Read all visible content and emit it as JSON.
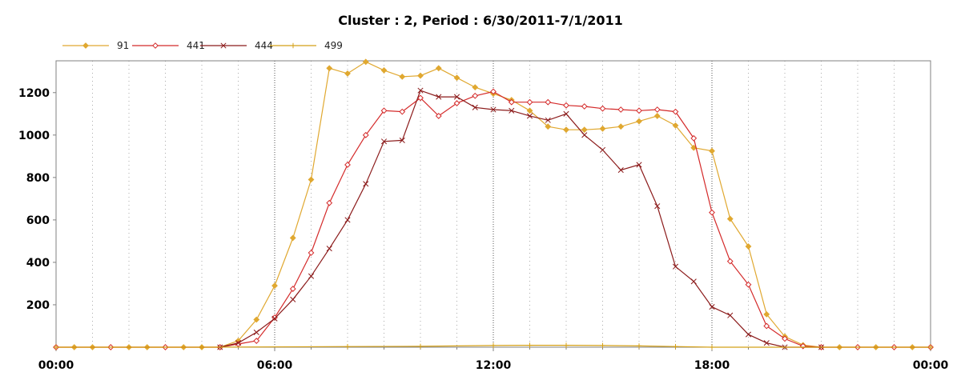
{
  "chart_data": {
    "type": "line",
    "title": "Cluster : 2, Period : 6/30/2011-7/1/2011",
    "xlabel": "",
    "ylabel": "",
    "xlim_hours": [
      0,
      24
    ],
    "ylim": [
      0,
      1350
    ],
    "x_tick_labels": [
      "00:00",
      "06:00",
      "12:00",
      "18:00",
      "00:00"
    ],
    "x_tick_hours": [
      0,
      6,
      12,
      18,
      24
    ],
    "y_ticks": [
      200,
      400,
      600,
      800,
      1000,
      1200
    ],
    "grid": "vertical dotted lines at each hour",
    "legend_placement": "top-left",
    "series": [
      {
        "name": "91",
        "color": "#e0a830",
        "marker": "diamond-filled",
        "points": [
          [
            0,
            0
          ],
          [
            0.5,
            0
          ],
          [
            1,
            0
          ],
          [
            1.5,
            0
          ],
          [
            2,
            0
          ],
          [
            2.5,
            0
          ],
          [
            3,
            0
          ],
          [
            3.5,
            0
          ],
          [
            4,
            0
          ],
          [
            4.5,
            0
          ],
          [
            5,
            30
          ],
          [
            5.5,
            130
          ],
          [
            6,
            290
          ],
          [
            6.5,
            515
          ],
          [
            7,
            790
          ],
          [
            7.5,
            1315
          ],
          [
            8,
            1290
          ],
          [
            8.5,
            1345
          ],
          [
            9,
            1305
          ],
          [
            9.5,
            1275
          ],
          [
            10,
            1280
          ],
          [
            10.5,
            1315
          ],
          [
            11,
            1270
          ],
          [
            11.5,
            1225
          ],
          [
            12,
            1195
          ],
          [
            12.5,
            1165
          ],
          [
            13,
            1115
          ],
          [
            13.5,
            1040
          ],
          [
            14,
            1025
          ],
          [
            14.5,
            1025
          ],
          [
            15,
            1030
          ],
          [
            15.5,
            1040
          ],
          [
            16,
            1065
          ],
          [
            16.5,
            1090
          ],
          [
            17,
            1045
          ],
          [
            17.5,
            940
          ],
          [
            18,
            925
          ],
          [
            18.5,
            605
          ],
          [
            19,
            475
          ],
          [
            19.5,
            155
          ],
          [
            20,
            50
          ],
          [
            20.5,
            10
          ],
          [
            21,
            0
          ],
          [
            21.5,
            0
          ],
          [
            22,
            0
          ],
          [
            22.5,
            0
          ],
          [
            23,
            0
          ],
          [
            23.5,
            0
          ],
          [
            24,
            0
          ]
        ]
      },
      {
        "name": "441",
        "color": "#d42a2a",
        "marker": "diamond-open",
        "points": [
          [
            0,
            0
          ],
          [
            1.5,
            0
          ],
          [
            3,
            0
          ],
          [
            4.5,
            0
          ],
          [
            5,
            15
          ],
          [
            5.5,
            30
          ],
          [
            6,
            140
          ],
          [
            6.5,
            275
          ],
          [
            7,
            445
          ],
          [
            7.5,
            680
          ],
          [
            8,
            860
          ],
          [
            8.5,
            1000
          ],
          [
            9,
            1115
          ],
          [
            9.5,
            1110
          ],
          [
            10,
            1175
          ],
          [
            10.5,
            1090
          ],
          [
            11,
            1150
          ],
          [
            11.5,
            1185
          ],
          [
            12,
            1205
          ],
          [
            12.5,
            1155
          ],
          [
            13,
            1155
          ],
          [
            13.5,
            1155
          ],
          [
            14,
            1140
          ],
          [
            14.5,
            1135
          ],
          [
            15,
            1125
          ],
          [
            15.5,
            1120
          ],
          [
            16,
            1115
          ],
          [
            16.5,
            1120
          ],
          [
            17,
            1110
          ],
          [
            17.5,
            985
          ],
          [
            18,
            635
          ],
          [
            18.5,
            405
          ],
          [
            19,
            295
          ],
          [
            19.5,
            100
          ],
          [
            20,
            40
          ],
          [
            20.5,
            5
          ],
          [
            21,
            0
          ],
          [
            22,
            0
          ],
          [
            23,
            0
          ],
          [
            24,
            0
          ]
        ]
      },
      {
        "name": "444",
        "color": "#8b1a1a",
        "marker": "x",
        "points": [
          [
            4.5,
            0
          ],
          [
            5,
            20
          ],
          [
            5.5,
            70
          ],
          [
            6,
            135
          ],
          [
            6.5,
            225
          ],
          [
            7,
            335
          ],
          [
            7.5,
            465
          ],
          [
            8,
            600
          ],
          [
            8.5,
            770
          ],
          [
            9,
            970
          ],
          [
            9.5,
            975
          ],
          [
            10,
            1210
          ],
          [
            10.5,
            1180
          ],
          [
            11,
            1180
          ],
          [
            11.5,
            1130
          ],
          [
            12,
            1120
          ],
          [
            12.5,
            1115
          ],
          [
            13,
            1090
          ],
          [
            13.5,
            1070
          ],
          [
            14,
            1100
          ],
          [
            14.5,
            1000
          ],
          [
            15,
            930
          ],
          [
            15.5,
            835
          ],
          [
            16,
            860
          ],
          [
            16.5,
            665
          ],
          [
            17,
            380
          ],
          [
            17.5,
            310
          ],
          [
            18,
            190
          ],
          [
            18.5,
            150
          ],
          [
            19,
            60
          ],
          [
            19.5,
            20
          ],
          [
            20,
            0
          ],
          [
            21,
            0
          ]
        ]
      },
      {
        "name": "499",
        "color": "#d4a017",
        "marker": "plus",
        "points": [
          [
            0,
            0
          ],
          [
            4,
            0
          ],
          [
            8,
            3
          ],
          [
            10,
            4
          ],
          [
            12,
            8
          ],
          [
            13,
            9
          ],
          [
            14,
            9
          ],
          [
            15,
            8
          ],
          [
            16,
            6
          ],
          [
            17,
            3
          ],
          [
            18,
            0
          ],
          [
            24,
            0
          ]
        ]
      }
    ]
  }
}
